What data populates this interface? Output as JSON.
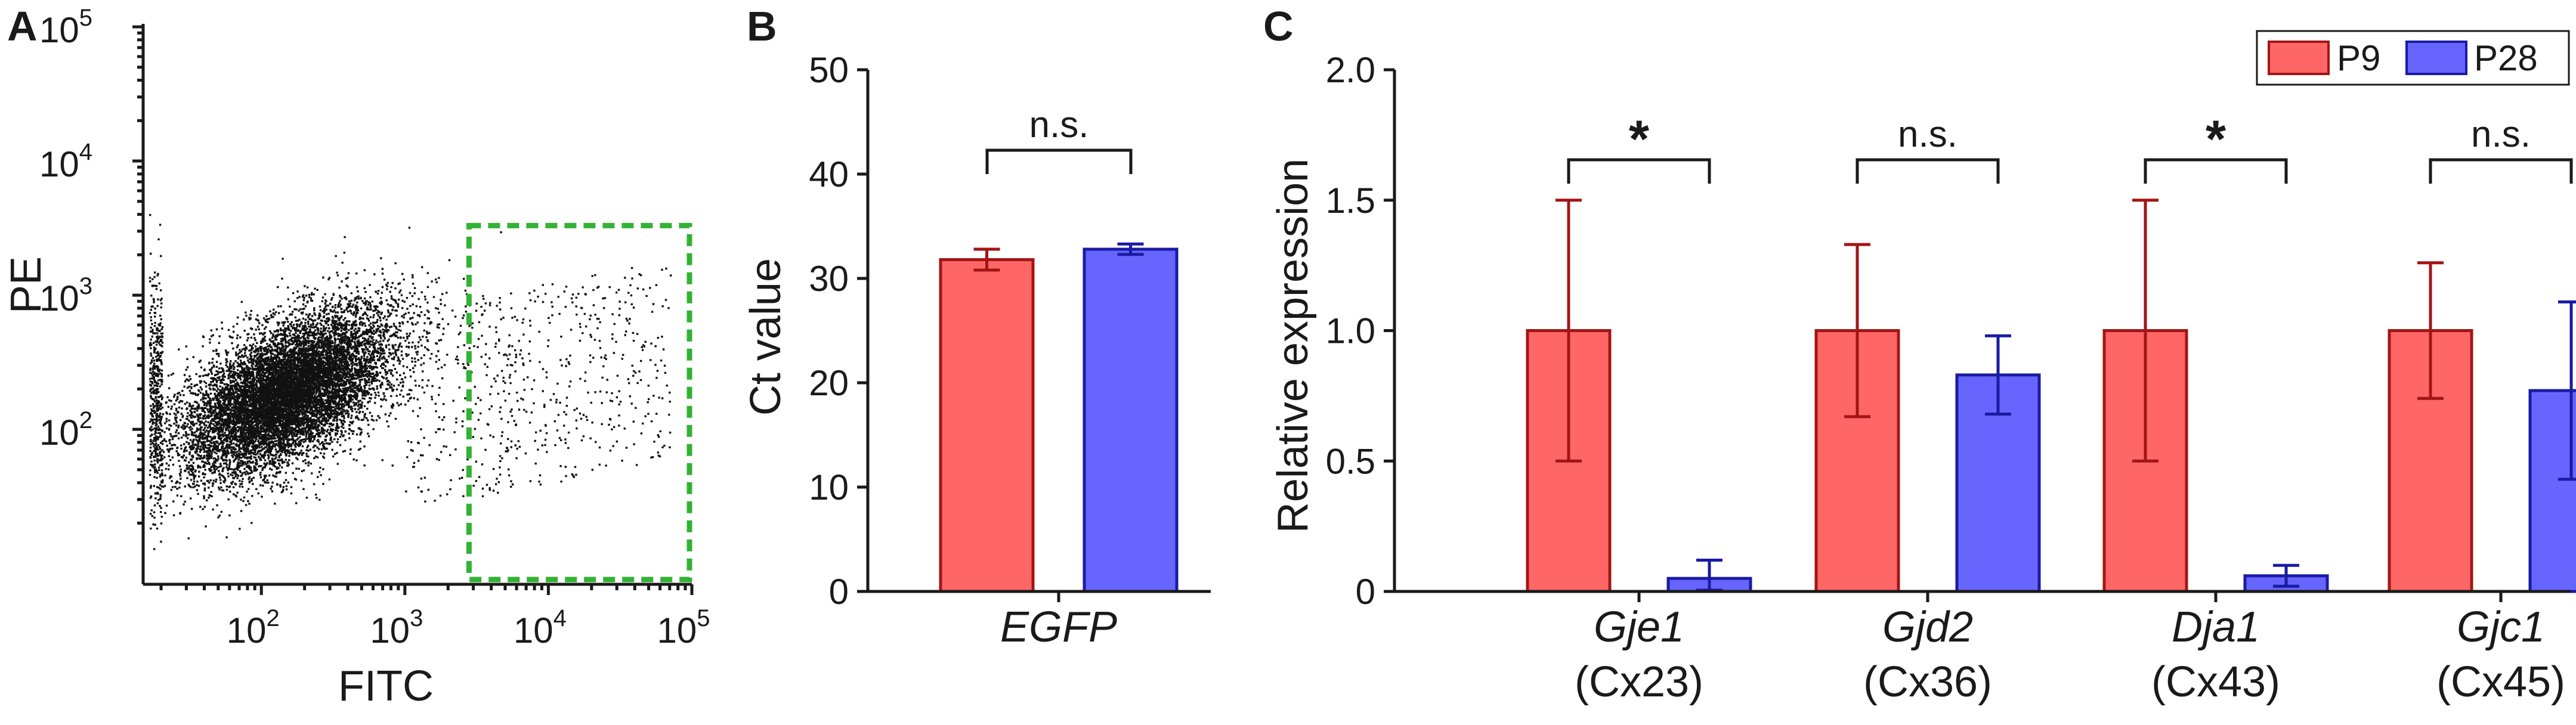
{
  "panels": {
    "a": {
      "letter": "A",
      "xlabel": "FITC",
      "ylabel": "PE",
      "x_ticks": [
        {
          "base": "10",
          "exp": "2"
        },
        {
          "base": "10",
          "exp": "3"
        },
        {
          "base": "10",
          "exp": "4"
        },
        {
          "base": "10",
          "exp": "5"
        }
      ],
      "y_ticks": [
        {
          "base": "10",
          "exp": "2"
        },
        {
          "base": "10",
          "exp": "3"
        },
        {
          "base": "10",
          "exp": "4"
        },
        {
          "base": "10",
          "exp": "5"
        }
      ],
      "gate_color": "#33b233"
    },
    "b": {
      "letter": "B",
      "ylabel": "Ct value",
      "category": "EGFP",
      "y_ticks": [
        "0",
        "10",
        "20",
        "30",
        "40",
        "50"
      ],
      "significance": "n.s."
    },
    "c": {
      "letter": "C",
      "ylabel": "Relative expression",
      "y_ticks": [
        "0",
        "0.5",
        "1.0",
        "1.5",
        "2.0"
      ],
      "legend": {
        "p9": "P9",
        "p28": "P28"
      },
      "genes": [
        {
          "name": "Gje1",
          "sub": "(Cx23)",
          "sig": "*"
        },
        {
          "name": "Gjd2",
          "sub": "(Cx36)",
          "sig": "n.s."
        },
        {
          "name": "Dja1",
          "sub": "(Cx43)",
          "sig": "*"
        },
        {
          "name": "Gjc1",
          "sub": "(Cx45)",
          "sig": "n.s."
        }
      ]
    }
  },
  "colors": {
    "p9_fill": "#ff6666",
    "p9_stroke": "#a31515",
    "p28_fill": "#6666ff",
    "p28_stroke": "#1a1aa3"
  },
  "chart_data": [
    {
      "type": "scatter",
      "title": "",
      "xlabel": "FITC",
      "ylabel": "PE",
      "xscale": "log",
      "yscale": "log",
      "xlim": [
        15,
        100000
      ],
      "ylim": [
        7,
        100000
      ],
      "gate": {
        "x": [
          2800,
          100000
        ],
        "y": [
          7,
          3300
        ]
      },
      "point_cloud": {
        "center": [
          150,
          190
        ],
        "approx_count": 12000,
        "note": "dense population centered near FITC 10^2, PE 10^2; sparse tail extending into the gated FITC-positive region"
      }
    },
    {
      "type": "bar",
      "title": "",
      "xlabel": "",
      "ylabel": "Ct value",
      "ylim": [
        0,
        50
      ],
      "categories": [
        "EGFP"
      ],
      "series": [
        {
          "name": "P9",
          "values": [
            31.8
          ],
          "errors": [
            1.0
          ]
        },
        {
          "name": "P28",
          "values": [
            32.8
          ],
          "errors": [
            0.5
          ]
        }
      ],
      "significance": [
        {
          "category": "EGFP",
          "label": "n.s."
        }
      ]
    },
    {
      "type": "bar",
      "title": "",
      "xlabel": "",
      "ylabel": "Relative expression",
      "ylim": [
        0,
        2.0
      ],
      "categories": [
        "Gje1 (Cx23)",
        "Gjd2 (Cx36)",
        "Dja1 (Cx43)",
        "Gjc1 (Cx45)"
      ],
      "series": [
        {
          "name": "P9",
          "values": [
            1.0,
            1.0,
            1.0,
            1.0
          ],
          "errors": [
            0.5,
            0.33,
            0.5,
            0.26
          ]
        },
        {
          "name": "P28",
          "values": [
            0.05,
            0.83,
            0.06,
            0.77
          ],
          "errors": [
            0.07,
            0.15,
            0.04,
            0.34
          ]
        }
      ],
      "significance": [
        {
          "category": "Gje1 (Cx23)",
          "label": "*"
        },
        {
          "category": "Gjd2 (Cx36)",
          "label": "n.s."
        },
        {
          "category": "Dja1 (Cx43)",
          "label": "*"
        },
        {
          "category": "Gjc1 (Cx45)",
          "label": "n.s."
        }
      ],
      "legend_position": "top-right"
    }
  ]
}
